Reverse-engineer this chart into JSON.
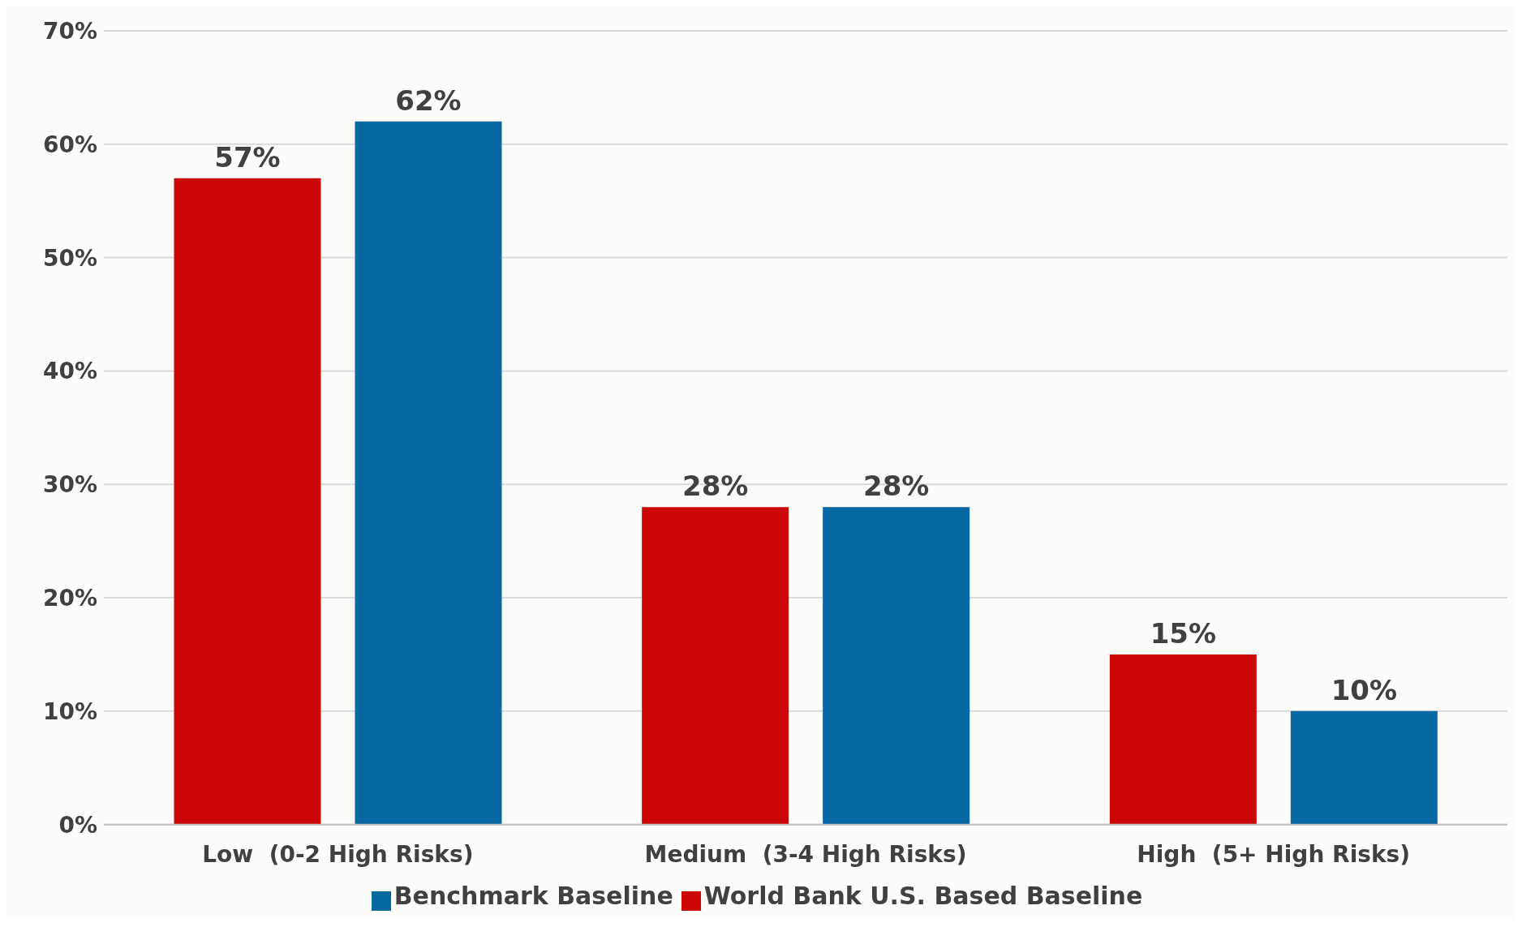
{
  "chart_data": {
    "type": "bar",
    "categories": [
      "Low  (0-2 High Risks)",
      "Medium  (3-4 High Risks)",
      "High  (5+ High Risks)"
    ],
    "series": [
      {
        "name": "World Bank U.S. Based Baseline",
        "color": "#cc0808",
        "values": [
          57,
          28,
          15
        ],
        "value_labels": [
          "57%",
          "28%",
          "15%"
        ]
      },
      {
        "name": "Benchmark Baseline",
        "color": "#0868a4",
        "values": [
          62,
          28,
          10
        ],
        "value_labels": [
          "62%",
          "28%",
          "10%"
        ]
      }
    ],
    "ylim": [
      0,
      70
    ],
    "yticks": [
      {
        "value": 0,
        "label": "0%"
      },
      {
        "value": 10,
        "label": "10%"
      },
      {
        "value": 20,
        "label": "20%"
      },
      {
        "value": 30,
        "label": "30%"
      },
      {
        "value": 40,
        "label": "40%"
      },
      {
        "value": 50,
        "label": "50%"
      },
      {
        "value": 60,
        "label": "60%"
      },
      {
        "value": 70,
        "label": "70%"
      }
    ],
    "grid": "y",
    "legend": "bottom"
  }
}
